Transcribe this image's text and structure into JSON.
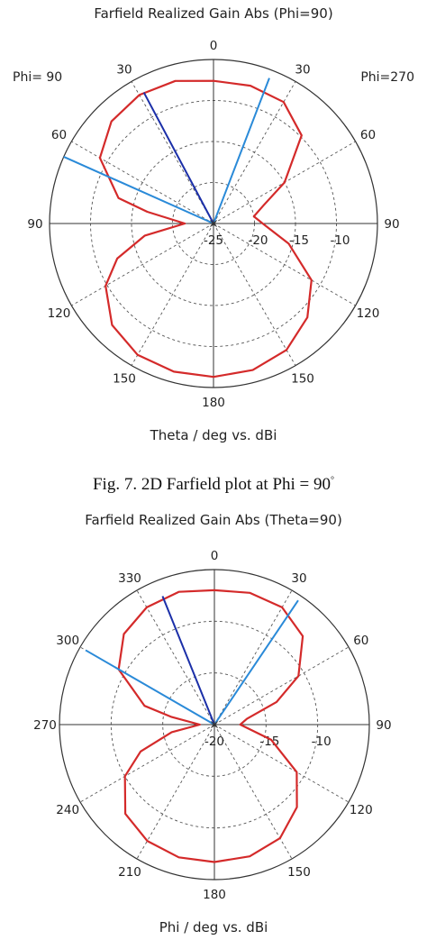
{
  "chart_data": [
    {
      "type": "polar-line",
      "title": "Farfield Realized Gain Abs (Phi=90)",
      "xlabel": "Theta / deg vs. dBi",
      "left_label": "Phi= 90",
      "right_label": "Phi=270",
      "angle_tick_labels": [
        "0",
        "30",
        "60",
        "90",
        "120",
        "150",
        "180",
        "150",
        "120",
        "90",
        "60",
        "30"
      ],
      "radial_tick_labels": [
        "-25",
        "-20",
        "-15",
        "-10"
      ],
      "radial_range_dbi": [
        -25,
        -5
      ],
      "radial_ticks_dbi": [
        -25,
        -20,
        -15,
        -10
      ],
      "grid": true,
      "series": [
        {
          "color": "#d42a2a",
          "angles_deg": [
            0,
            15,
            30,
            45,
            60,
            75,
            80,
            90,
            100,
            110,
            120,
            135,
            150,
            165,
            180,
            195,
            210,
            225,
            240,
            255,
            270,
            280,
            290,
            300,
            315,
            330,
            345,
            360
          ],
          "gain_dbi": [
            -7.6,
            -7.0,
            -6.9,
            -7.4,
            -9.0,
            -13.0,
            -16.8,
            -21.5,
            -16.5,
            -12.5,
            -9.8,
            -7.5,
            -6.5,
            -6.3,
            -6.3,
            -6.5,
            -7.2,
            -8.8,
            -11.2,
            -15.5,
            -19.0,
            -20.0,
            -18.5,
            -15.0,
            -9.8,
            -7.9,
            -7.6,
            -7.6
          ]
        }
      ],
      "markers": [
        {
          "color": "#1b2fa8",
          "angle_deg": 28,
          "gain_dbi": -6.9
        },
        {
          "color": "#2a8ad8",
          "angle_deg": 66,
          "gain_dbi": -5.0
        },
        {
          "color": "#2a8ad8",
          "angle_deg": 339,
          "gain_dbi": -6.0
        }
      ]
    },
    {
      "type": "polar-line",
      "title": "Farfield Realized Gain Abs (Theta=90)",
      "xlabel": "Phi / deg vs. dBi",
      "angle_tick_labels": [
        "0",
        "330",
        "300",
        "270",
        "240",
        "210",
        "180",
        "150",
        "120",
        "90",
        "60",
        "30"
      ],
      "radial_tick_labels": [
        "-20",
        "-15",
        "-10"
      ],
      "radial_range_dbi": [
        -20,
        -5
      ],
      "radial_ticks_dbi": [
        -20,
        -15,
        -10
      ],
      "grid": true,
      "series": [
        {
          "color": "#d42a2a",
          "angles_deg": [
            0,
            15,
            30,
            45,
            60,
            75,
            80,
            90,
            100,
            110,
            120,
            135,
            150,
            165,
            180,
            195,
            210,
            225,
            240,
            255,
            270,
            280,
            290,
            300,
            315,
            330,
            345,
            360
          ],
          "gain_dbi": [
            -7.0,
            -6.7,
            -6.9,
            -7.6,
            -9.3,
            -13.0,
            -15.8,
            -18.6,
            -15.8,
            -12.4,
            -10.0,
            -7.8,
            -7.0,
            -6.7,
            -6.7,
            -6.8,
            -7.3,
            -8.7,
            -10.8,
            -14.3,
            -17.5,
            -16.8,
            -13.6,
            -10.6,
            -7.9,
            -6.9,
            -6.8,
            -7.0
          ]
        }
      ],
      "markers": [
        {
          "color": "#1b2fa8",
          "angle_deg": 22,
          "gain_dbi": -6.6
        },
        {
          "color": "#2a8ad8",
          "angle_deg": 60,
          "gain_dbi": -5.6
        },
        {
          "color": "#2a8ad8",
          "angle_deg": 326,
          "gain_dbi": -5.5
        }
      ]
    }
  ],
  "caption": {
    "text": "Fig. 7. 2D Farfield plot at Phi = 90",
    "degree_mark": "°"
  }
}
